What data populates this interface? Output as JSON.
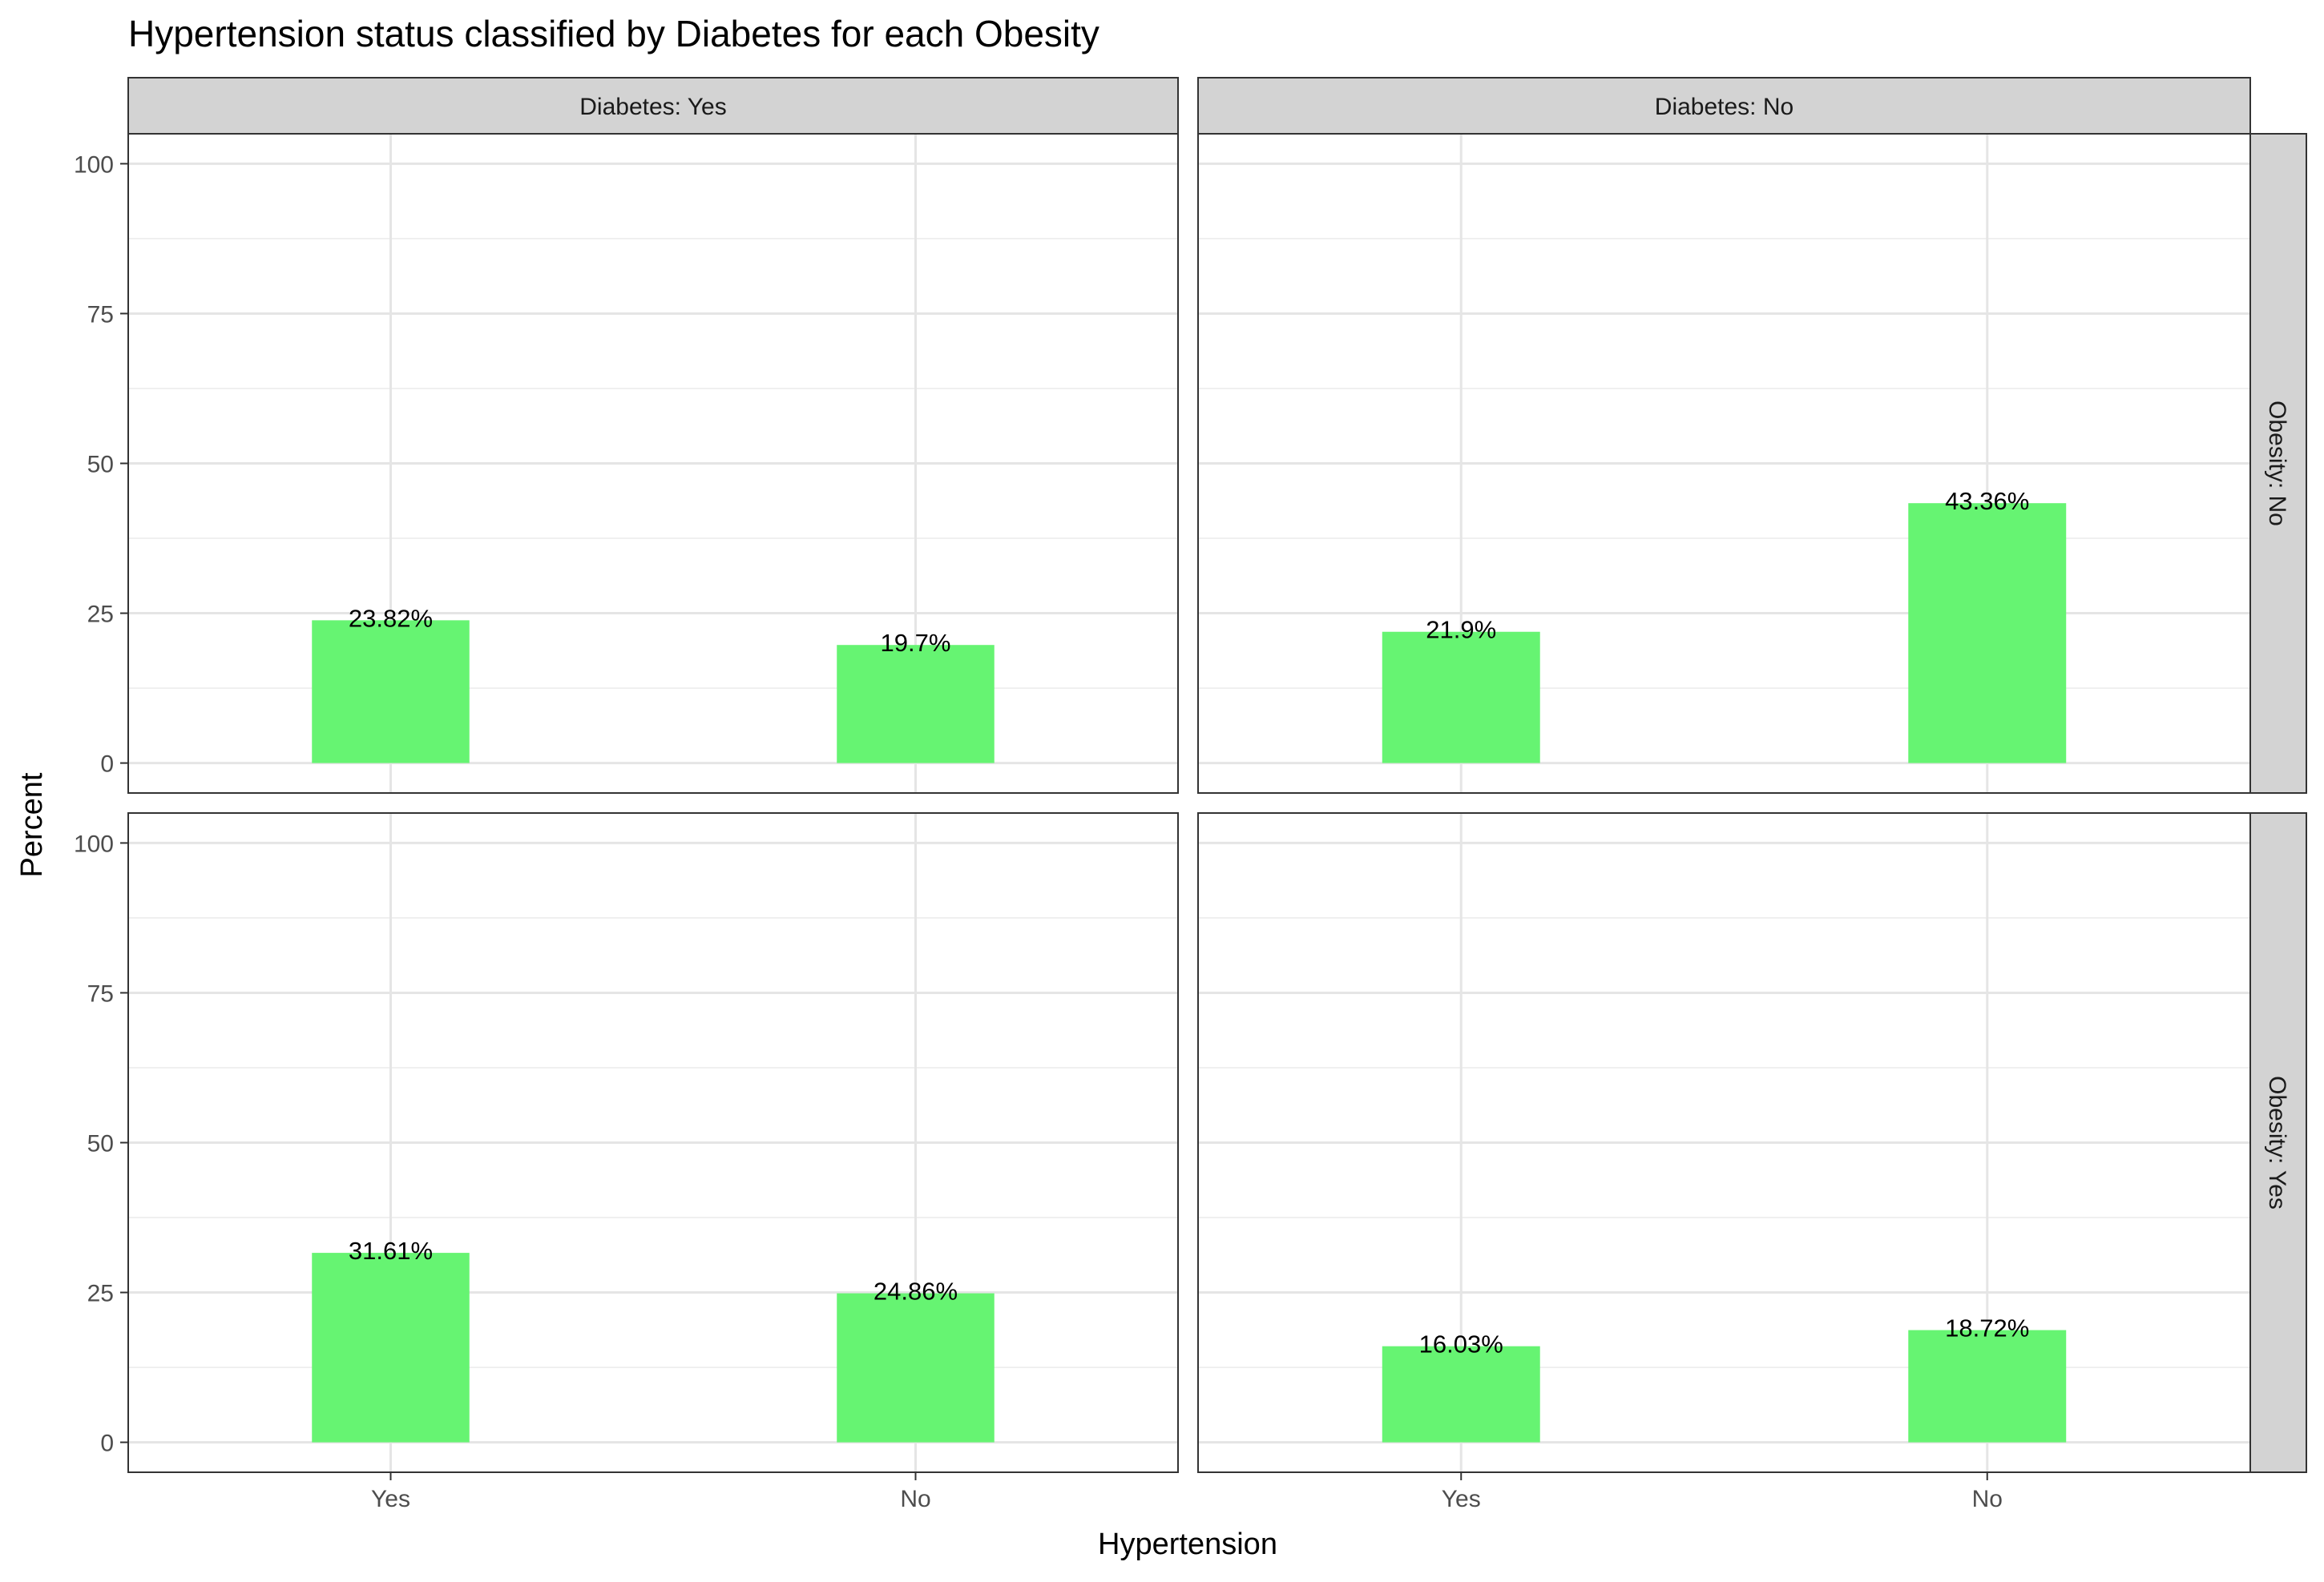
{
  "chart_data": {
    "type": "bar",
    "title": "Hypertension status classified by Diabetes for each Obesity",
    "xlabel": "Hypertension",
    "ylabel": "Percent",
    "ylim": [
      -5,
      105
    ],
    "yticks": [
      0,
      25,
      50,
      75,
      100
    ],
    "grid": true,
    "legend": "none",
    "bar_color": "#66f472",
    "categories": [
      "Yes",
      "No"
    ],
    "facet_columns": [
      "Diabetes: Yes",
      "Diabetes: No"
    ],
    "facet_rows": [
      "Obesity: No",
      "Obesity: Yes"
    ],
    "panels": [
      {
        "col": "Diabetes: Yes",
        "row": "Obesity: No",
        "values": [
          23.82,
          19.7
        ],
        "labels": [
          "23.82%",
          "19.7%"
        ]
      },
      {
        "col": "Diabetes: No",
        "row": "Obesity: No",
        "values": [
          21.9,
          43.36
        ],
        "labels": [
          "21.9%",
          "43.36%"
        ]
      },
      {
        "col": "Diabetes: Yes",
        "row": "Obesity: Yes",
        "values": [
          31.61,
          24.86
        ],
        "labels": [
          "31.61%",
          "24.86%"
        ]
      },
      {
        "col": "Diabetes: No",
        "row": "Obesity: Yes",
        "values": [
          16.03,
          18.72
        ],
        "labels": [
          "16.03%",
          "18.72%"
        ]
      }
    ]
  }
}
